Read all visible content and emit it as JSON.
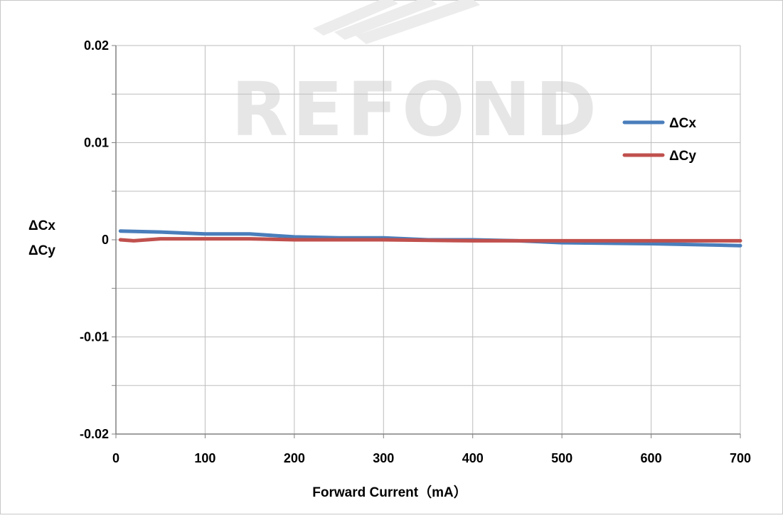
{
  "chart_data": {
    "type": "line",
    "title": "",
    "xlabel": "Forward Current（mA）",
    "ylabel_lines": [
      "ΔCx",
      "ΔCy"
    ],
    "xlim": [
      0,
      700
    ],
    "ylim": [
      -0.02,
      0.02
    ],
    "x_ticks": [
      0,
      100,
      200,
      300,
      400,
      500,
      600,
      700
    ],
    "x_tick_labels": [
      "0",
      "100",
      "200",
      "300",
      "400",
      "500",
      "600",
      "700"
    ],
    "y_ticks": [
      0.02,
      0.01,
      0,
      -0.01,
      -0.02
    ],
    "y_tick_labels": [
      "0.02",
      "0.01",
      "0",
      "-0.01",
      "-0.02"
    ],
    "grid": true,
    "legend_position": "top-right",
    "series": [
      {
        "name": "ΔCx",
        "color": "#4a7ebb",
        "x": [
          5,
          50,
          100,
          150,
          200,
          250,
          300,
          350,
          400,
          450,
          500,
          600,
          700
        ],
        "y": [
          0.0009,
          0.0008,
          0.0006,
          0.0006,
          0.0003,
          0.0002,
          0.0002,
          0.0,
          0.0,
          -0.0001,
          -0.0003,
          -0.0004,
          -0.0006
        ]
      },
      {
        "name": "ΔCy",
        "color": "#c0504d",
        "x": [
          5,
          20,
          50,
          100,
          150,
          200,
          300,
          400,
          500,
          600,
          700
        ],
        "y": [
          0.0,
          -0.0001,
          0.0001,
          0.0001,
          0.0001,
          0.0,
          0.0,
          -0.0001,
          -0.0001,
          -0.0001,
          -0.0001
        ]
      }
    ]
  },
  "watermark": {
    "text": "REFOND"
  }
}
